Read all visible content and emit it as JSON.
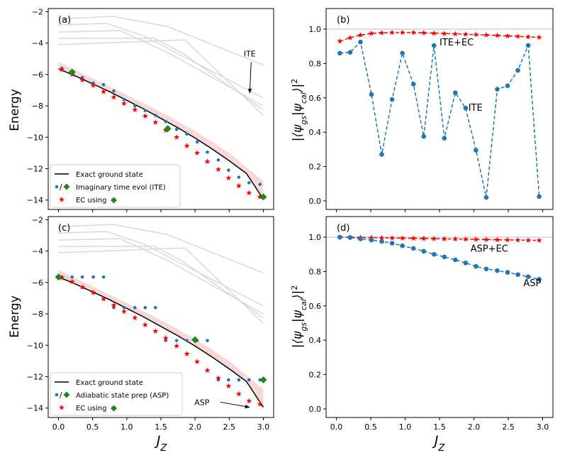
{
  "figure": {
    "ylabel_energy": "Energy",
    "ylabel_overlap": "|⟨ψ_gs|ψ_cal⟩|²",
    "xlabel": "J_Z"
  },
  "colors": {
    "exact": "#000000",
    "excited": "#d9d9d9",
    "ite_dots": "#1f77b4",
    "ec_stars": "#ff0000",
    "ec_band": "#f4b8b8",
    "diamond": "#1a8a1a",
    "hline": "#bbbbbb"
  },
  "chart_data": [
    {
      "id": "a",
      "panel_label": "(a)",
      "type": "line",
      "xlim": [
        -0.15,
        3.15
      ],
      "ylim": [
        -14.6,
        -1.8
      ],
      "xticks": [
        0.0,
        0.5,
        1.0,
        1.5,
        2.0,
        2.5,
        3.0
      ],
      "yticks": [
        -14,
        -12,
        -10,
        -8,
        -6,
        -4,
        -2
      ],
      "ytick_labels": [
        "−14",
        "−12",
        "−10",
        "−8",
        "−6",
        "−4",
        "−2"
      ],
      "xtick_labels_visible": false,
      "exact_x": [
        0.0,
        0.25,
        0.5,
        0.75,
        1.0,
        1.25,
        1.5,
        1.75,
        2.0,
        2.25,
        2.5,
        2.75,
        3.0
      ],
      "exact_y": [
        -5.65,
        -6.1,
        -6.6,
        -7.1,
        -7.65,
        -8.2,
        -8.8,
        -9.4,
        -10.05,
        -10.75,
        -11.5,
        -12.3,
        -13.95
      ],
      "excited": [
        {
          "x": [
            0.0,
            0.8,
            1.6,
            3.0
          ],
          "y": [
            -2.45,
            -2.3,
            -2.95,
            -5.4
          ]
        },
        {
          "x": [
            0.0,
            0.7,
            1.25,
            3.0
          ],
          "y": [
            -2.85,
            -2.75,
            -3.55,
            -7.5
          ]
        },
        {
          "x": [
            0.0,
            0.9,
            1.6,
            3.0
          ],
          "y": [
            -3.3,
            -3.2,
            -4.6,
            -8.0
          ]
        },
        {
          "x": [
            0.0,
            1.4,
            1.8,
            3.0
          ],
          "y": [
            -3.7,
            -3.7,
            -4.6,
            -8.25
          ]
        },
        {
          "x": [
            0.0,
            1.85,
            3.0
          ],
          "y": [
            -4.1,
            -3.8,
            -8.6
          ]
        }
      ],
      "band_x": [
        0.0,
        0.5,
        1.0,
        1.5,
        2.0,
        2.5,
        3.0
      ],
      "band_y": [
        -5.2,
        -6.25,
        -7.3,
        -8.4,
        -9.6,
        -11.0,
        -12.8
      ],
      "dots_x": [
        0.05,
        0.2,
        0.35,
        0.51,
        0.66,
        0.81,
        0.96,
        1.12,
        1.27,
        1.42,
        1.57,
        1.73,
        1.88,
        2.03,
        2.18,
        2.34,
        2.49,
        2.64,
        2.79,
        2.95
      ],
      "dots_y": [
        -5.6,
        -5.85,
        -6.2,
        -6.55,
        -6.65,
        -7.05,
        -7.6,
        -8.0,
        -8.3,
        -8.6,
        -9.0,
        -9.5,
        -9.8,
        -10.3,
        -10.95,
        -11.45,
        -12.1,
        -12.55,
        -12.9,
        -13.0
      ],
      "stars_x": [
        0.05,
        0.2,
        0.35,
        0.51,
        0.66,
        0.81,
        0.96,
        1.12,
        1.27,
        1.42,
        1.57,
        1.73,
        1.88,
        2.03,
        2.18,
        2.34,
        2.49,
        2.64,
        2.79,
        2.95
      ],
      "stars_y": [
        -5.7,
        -6.0,
        -6.35,
        -6.7,
        -7.1,
        -7.45,
        -7.85,
        -8.25,
        -8.65,
        -9.05,
        -9.55,
        -10.0,
        -10.55,
        -11.0,
        -11.55,
        -12.05,
        -12.6,
        -13.1,
        -13.55,
        -13.8
      ],
      "diamonds_x": [
        0.2,
        1.6,
        3.0
      ],
      "diamonds_y": [
        -5.85,
        -9.45,
        -13.8
      ],
      "annotation": {
        "text": "ITE",
        "x": 2.8,
        "y": -4.85,
        "arrow_to": [
          2.8,
          -7.2
        ]
      },
      "legend": [
        {
          "label": "Exact ground state",
          "kind": "line"
        },
        {
          "label": "Imaginary time evol (ITE)",
          "kind": "dot-diamond"
        },
        {
          "label": "EC using",
          "kind": "star-diamond"
        }
      ]
    },
    {
      "id": "b",
      "panel_label": "(b)",
      "type": "line",
      "xlim": [
        -0.15,
        3.15
      ],
      "ylim": [
        -0.05,
        1.12
      ],
      "xticks": [
        0.0,
        0.5,
        1.0,
        1.5,
        2.0,
        2.5,
        3.0
      ],
      "yticks": [
        0.0,
        0.2,
        0.4,
        0.6,
        0.8,
        1.0
      ],
      "ytick_labels": [
        "0.0",
        "0.2",
        "0.4",
        "0.6",
        "0.8",
        "1.0"
      ],
      "xtick_labels_visible": false,
      "hline": 1.0,
      "series": [
        {
          "name": "ITE+EC",
          "x": [
            0.05,
            0.2,
            0.35,
            0.51,
            0.66,
            0.81,
            0.96,
            1.12,
            1.27,
            1.42,
            1.57,
            1.73,
            1.88,
            2.03,
            2.18,
            2.34,
            2.49,
            2.64,
            2.79,
            2.95
          ],
          "y": [
            0.93,
            0.95,
            0.965,
            0.975,
            0.978,
            0.98,
            0.98,
            0.98,
            0.978,
            0.976,
            0.974,
            0.972,
            0.97,
            0.968,
            0.966,
            0.963,
            0.96,
            0.958,
            0.955,
            0.952
          ]
        },
        {
          "name": "ITE",
          "x": [
            0.05,
            0.2,
            0.35,
            0.51,
            0.66,
            0.81,
            0.96,
            1.12,
            1.27,
            1.42,
            1.57,
            1.73,
            1.88,
            2.03,
            2.18,
            2.34,
            2.49,
            2.64,
            2.79,
            2.95
          ],
          "y": [
            0.86,
            0.865,
            0.925,
            0.62,
            0.27,
            0.59,
            0.86,
            0.68,
            0.375,
            0.905,
            0.365,
            0.63,
            0.54,
            0.295,
            0.02,
            0.65,
            0.67,
            0.76,
            0.905,
            0.025
          ]
        }
      ],
      "labels": [
        {
          "text": "ITE+EC",
          "x": 1.5,
          "y": 0.905,
          "color": "ec_stars"
        },
        {
          "text": "ITE",
          "x": 1.92,
          "y": 0.525,
          "color": "ite_dots"
        }
      ]
    },
    {
      "id": "c",
      "panel_label": "(c)",
      "type": "line",
      "xlim": [
        -0.15,
        3.15
      ],
      "ylim": [
        -14.6,
        -1.8
      ],
      "xticks": [
        0.0,
        0.5,
        1.0,
        1.5,
        2.0,
        2.5,
        3.0
      ],
      "xtick_labels": [
        "0.0",
        "0.5",
        "1.0",
        "1.5",
        "2.0",
        "2.5",
        "3.0"
      ],
      "yticks": [
        -14,
        -12,
        -10,
        -8,
        -6,
        -4,
        -2
      ],
      "ytick_labels": [
        "−14",
        "−12",
        "−10",
        "−8",
        "−6",
        "−4",
        "−2"
      ],
      "xtick_labels_visible": true,
      "exact_x": [
        0.0,
        0.25,
        0.5,
        0.75,
        1.0,
        1.25,
        1.5,
        1.75,
        2.0,
        2.25,
        2.5,
        2.75,
        3.0
      ],
      "exact_y": [
        -5.65,
        -6.1,
        -6.6,
        -7.1,
        -7.65,
        -8.2,
        -8.8,
        -9.4,
        -10.05,
        -10.75,
        -11.5,
        -12.3,
        -13.95
      ],
      "excited": [
        {
          "x": [
            0.0,
            0.8,
            1.6,
            3.0
          ],
          "y": [
            -2.45,
            -2.3,
            -2.95,
            -5.4
          ]
        },
        {
          "x": [
            0.0,
            0.7,
            1.25,
            3.0
          ],
          "y": [
            -2.85,
            -2.75,
            -3.55,
            -7.5
          ]
        },
        {
          "x": [
            0.0,
            0.9,
            1.6,
            3.0
          ],
          "y": [
            -3.3,
            -3.2,
            -4.6,
            -8.0
          ]
        },
        {
          "x": [
            0.0,
            1.4,
            1.8,
            3.0
          ],
          "y": [
            -3.7,
            -3.7,
            -4.6,
            -8.25
          ]
        },
        {
          "x": [
            0.0,
            1.85,
            3.0
          ],
          "y": [
            -4.1,
            -3.8,
            -8.6
          ]
        }
      ],
      "band_x": [
        0.0,
        0.5,
        1.0,
        1.5,
        2.0,
        2.5,
        3.0
      ],
      "band_y": [
        -5.2,
        -6.25,
        -7.3,
        -8.4,
        -9.6,
        -11.0,
        -12.8
      ],
      "dots_x": [
        0.05,
        0.2,
        0.35,
        0.51,
        0.66,
        0.81,
        0.96,
        1.12,
        1.27,
        1.42,
        1.57,
        1.73,
        1.88,
        2.03,
        2.18,
        2.34,
        2.49,
        2.64,
        2.79,
        2.95
      ],
      "dots_y": [
        -5.65,
        -5.65,
        -5.65,
        -5.65,
        -5.65,
        -7.6,
        -7.6,
        -7.6,
        -7.6,
        -7.6,
        -9.7,
        -9.7,
        -9.7,
        -9.7,
        -9.7,
        -12.2,
        -12.2,
        -12.2,
        -12.2,
        -12.2
      ],
      "stars_x": [
        0.05,
        0.2,
        0.35,
        0.51,
        0.66,
        0.81,
        0.96,
        1.12,
        1.27,
        1.42,
        1.57,
        1.73,
        1.88,
        2.03,
        2.18,
        2.34,
        2.49,
        2.64,
        2.79,
        2.95
      ],
      "stars_y": [
        -5.7,
        -5.95,
        -6.3,
        -6.65,
        -7.05,
        -7.45,
        -7.85,
        -8.25,
        -8.7,
        -9.1,
        -9.55,
        -10.05,
        -10.55,
        -11.05,
        -11.6,
        -12.1,
        -12.6,
        -13.1,
        -13.55,
        -13.75
      ],
      "diamonds_x": [
        0.0,
        2.0,
        3.0
      ],
      "diamonds_y": [
        -5.65,
        -9.65,
        -12.2
      ],
      "annotation": {
        "text": "ASP",
        "x": 2.1,
        "y": -13.8,
        "arrow_to": [
          2.8,
          -13.95
        ]
      },
      "legend": [
        {
          "label": "Exact ground state",
          "kind": "line"
        },
        {
          "label": "Adiabatic state prep (ASP)",
          "kind": "dot-diamond"
        },
        {
          "label": "EC using",
          "kind": "star-diamond"
        }
      ]
    },
    {
      "id": "d",
      "panel_label": "(d)",
      "type": "line",
      "xlim": [
        -0.15,
        3.15
      ],
      "ylim": [
        -0.05,
        1.12
      ],
      "xticks": [
        0.0,
        0.5,
        1.0,
        1.5,
        2.0,
        2.5,
        3.0
      ],
      "xtick_labels": [
        "0.0",
        "0.5",
        "1.0",
        "1.5",
        "2.0",
        "2.5",
        "3.0"
      ],
      "yticks": [
        0.0,
        0.2,
        0.4,
        0.6,
        0.8,
        1.0
      ],
      "ytick_labels": [
        "0.0",
        "0.2",
        "0.4",
        "0.6",
        "0.8",
        "1.0"
      ],
      "xtick_labels_visible": true,
      "hline": 1.0,
      "series": [
        {
          "name": "ASP+EC",
          "x": [
            0.05,
            0.2,
            0.35,
            0.51,
            0.66,
            0.81,
            0.96,
            1.12,
            1.27,
            1.42,
            1.57,
            1.73,
            1.88,
            2.03,
            2.18,
            2.34,
            2.49,
            2.64,
            2.79,
            2.95
          ],
          "y": [
            1.0,
            1.0,
            0.998,
            0.997,
            0.996,
            0.995,
            0.994,
            0.993,
            0.992,
            0.991,
            0.99,
            0.989,
            0.988,
            0.987,
            0.986,
            0.985,
            0.984,
            0.983,
            0.982,
            0.981
          ]
        },
        {
          "name": "ASP",
          "x": [
            0.05,
            0.2,
            0.35,
            0.51,
            0.66,
            0.81,
            0.96,
            1.12,
            1.27,
            1.42,
            1.57,
            1.73,
            1.88,
            2.03,
            2.18,
            2.34,
            2.49,
            2.64,
            2.79,
            2.95
          ],
          "y": [
            1.0,
            0.998,
            0.99,
            0.983,
            0.975,
            0.965,
            0.95,
            0.935,
            0.918,
            0.9,
            0.885,
            0.868,
            0.85,
            0.83,
            0.815,
            0.805,
            0.795,
            0.782,
            0.77,
            0.755
          ]
        }
      ],
      "labels": [
        {
          "text": "ASP+EC",
          "x": 1.95,
          "y": 0.915,
          "color": "ec_stars"
        },
        {
          "text": "ASP",
          "x": 2.72,
          "y": 0.715,
          "color": "ite_dots"
        }
      ]
    }
  ]
}
